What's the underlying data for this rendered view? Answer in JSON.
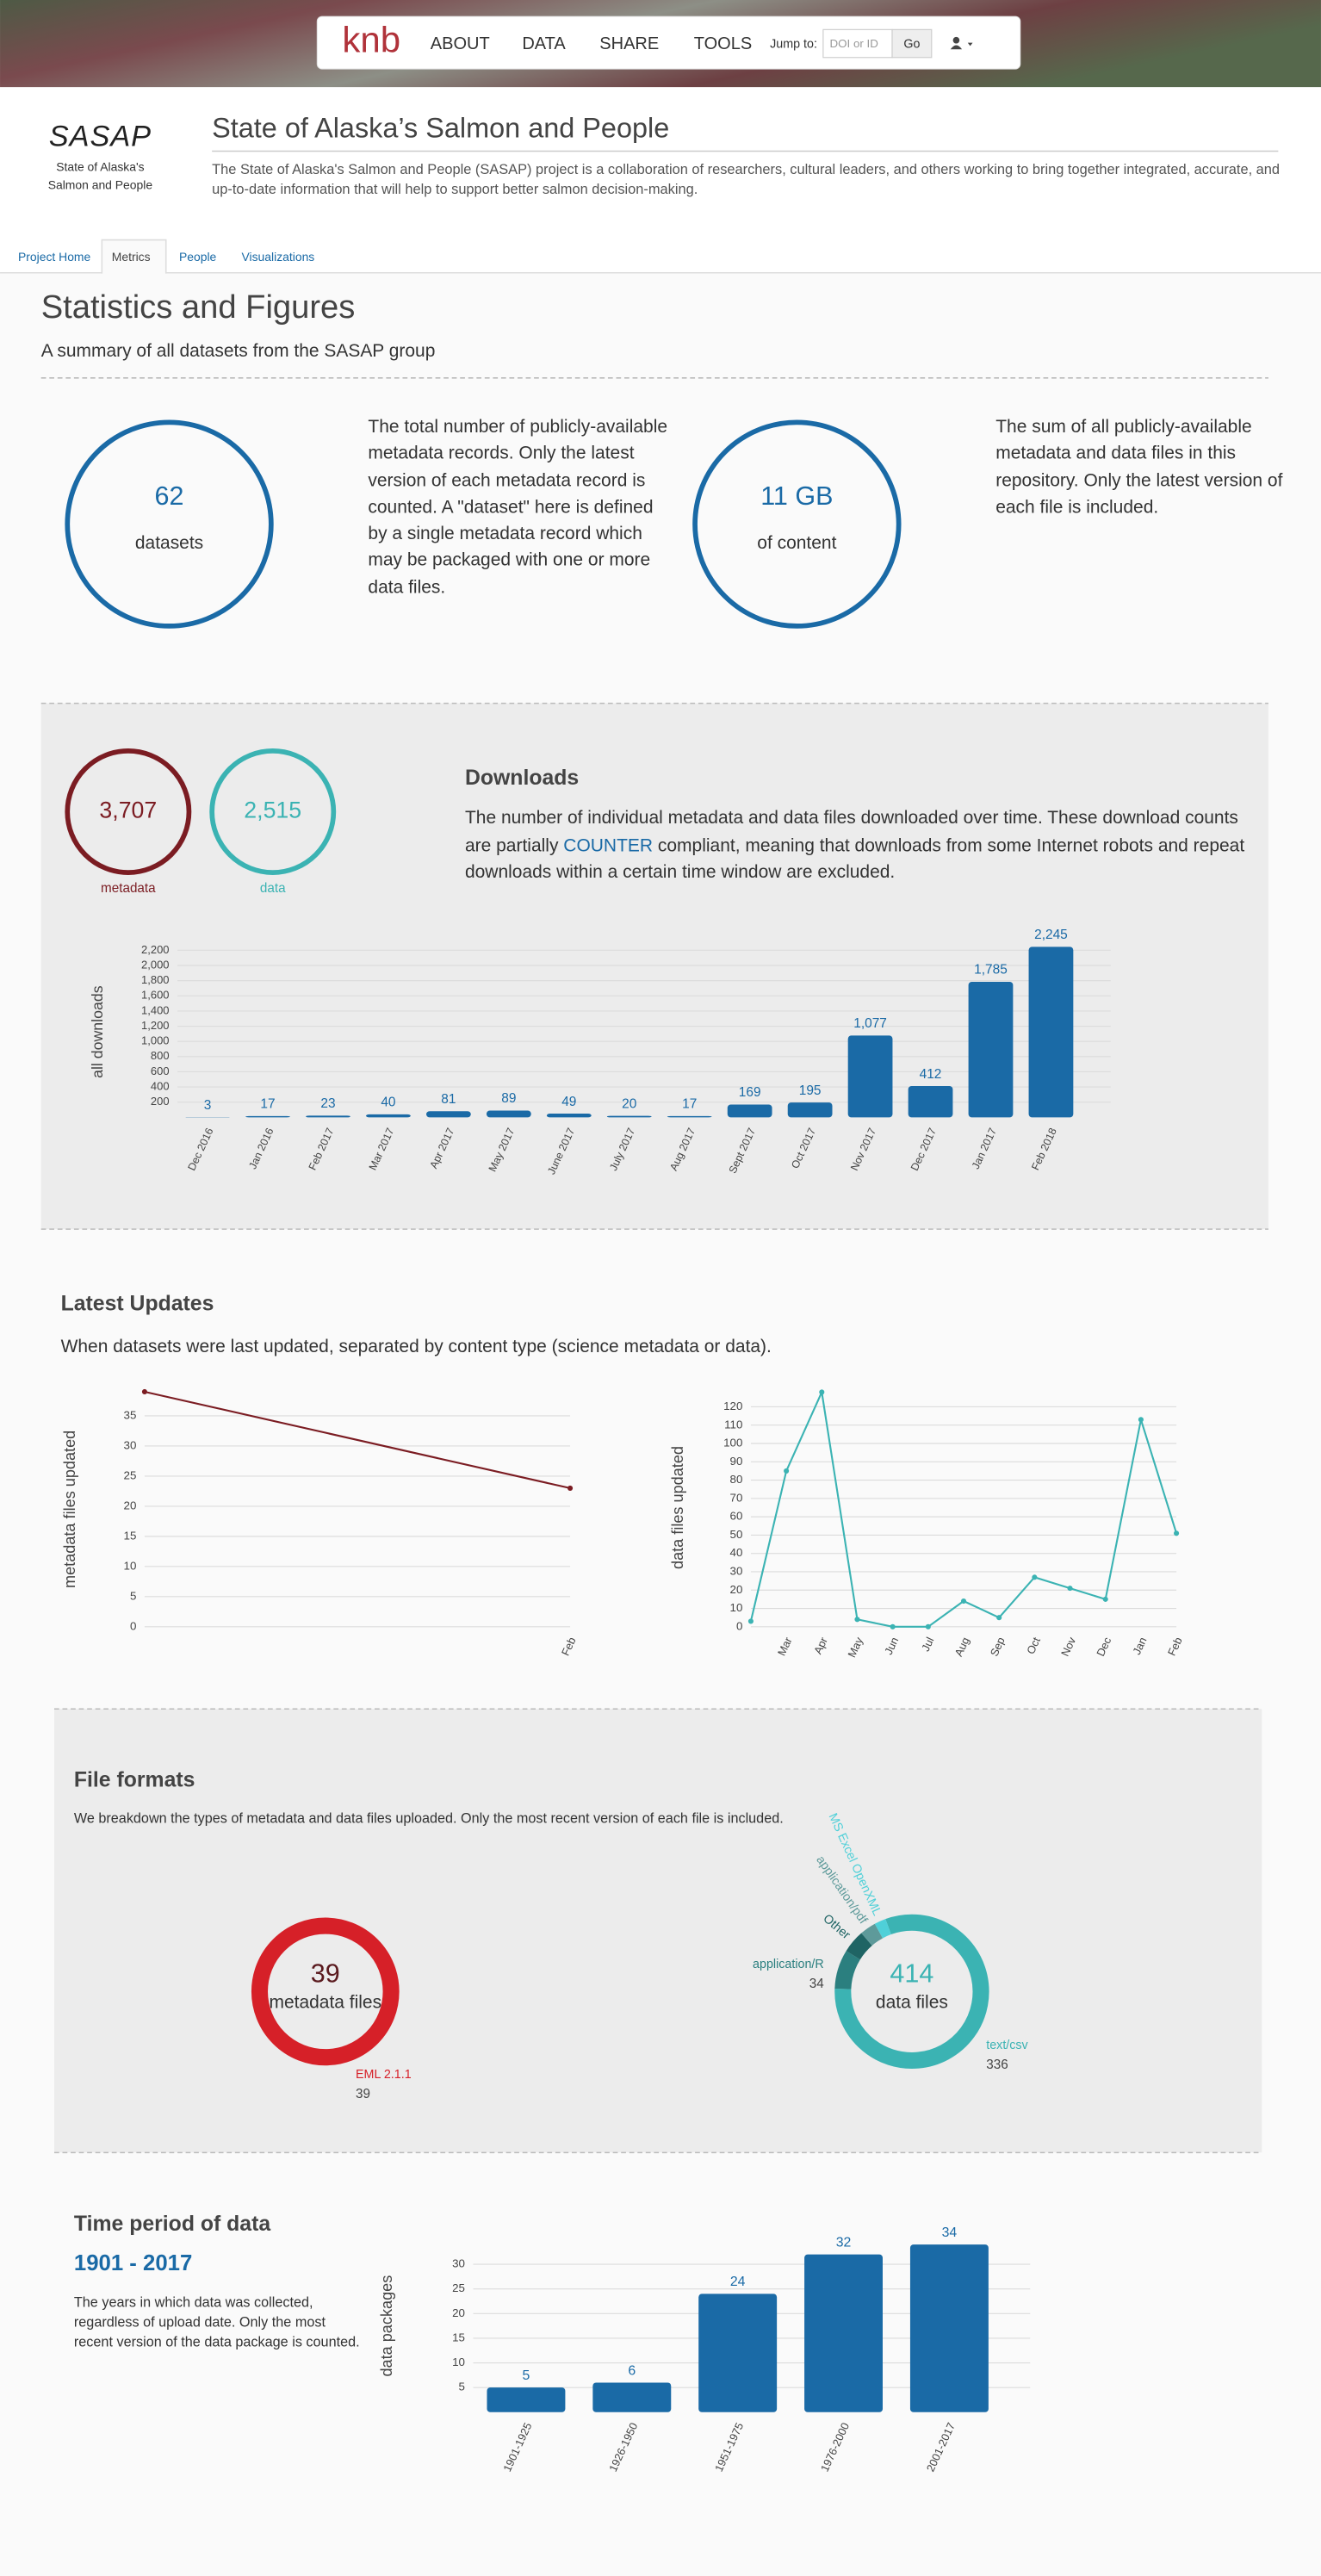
{
  "nav": {
    "logo": "knb",
    "items": [
      "ABOUT",
      "DATA",
      "SHARE",
      "TOOLS"
    ],
    "jump_label": "Jump to:",
    "jump_placeholder": "DOI or ID",
    "go": "Go"
  },
  "header": {
    "logo": "SASAP",
    "logo_lines": [
      "State of Alaska's",
      "Salmon and People"
    ],
    "title": "State of Alaska’s Salmon and People",
    "description": "The State of Alaska's Salmon and People (SASAP) project is a collaboration of researchers, cultural leaders, and others working to bring together integrated, accurate, and up-to-date information that will help to support better salmon decision-making."
  },
  "tabs": {
    "items": [
      "Project Home",
      "Metrics",
      "People",
      "Visualizations"
    ],
    "active": 1
  },
  "statistics": {
    "title": "Statistics and Figures",
    "subtitle": "A summary of all datasets from the SASAP group",
    "datasets": {
      "value": "62",
      "label": "datasets",
      "description": "The total number of publicly-available metadata records. Only the latest version of each metadata record is counted. A \"dataset\" here is defined by a single metadata record which may be packaged with one or more data files."
    },
    "content": {
      "value": "11 GB",
      "label": "of content",
      "description": "The sum of all publicly-available metadata and data files in this repository. Only the latest version of each file is included."
    }
  },
  "downloads": {
    "metadata": {
      "value": "3,707",
      "label": "metadata",
      "color": "#7b1c22"
    },
    "data": {
      "value": "2,515",
      "label": "data",
      "color": "#3bb3b3"
    },
    "title": "Downloads",
    "description_parts": [
      {
        "text": "The number of individual metadata and data files downloaded over time. These download counts are partially "
      },
      {
        "text": "COUNTER",
        "link": true
      },
      {
        "text": " compliant, meaning that downloads from some Internet robots and repeat downloads within a certain time window are excluded."
      }
    ],
    "chart": {
      "type": "bar",
      "ylabel": "all downloads",
      "color": "#1a6aa6",
      "grid": true,
      "categories": [
        "Dec 2016",
        "Jan 2016",
        "Feb 2017",
        "Mar 2017",
        "Apr 2017",
        "May 2017",
        "June 2017",
        "July 2017",
        "Aug 2017",
        "Sept 2017",
        "Oct 2017",
        "Nov 2017",
        "Dec 2017",
        "Jan 2017",
        "Feb 2018"
      ],
      "values": [
        3,
        17,
        23,
        40,
        81,
        89,
        49,
        20,
        17,
        169,
        195,
        1077,
        412,
        1785,
        2245
      ],
      "value_labels": [
        "3",
        "17",
        "23",
        "40",
        "81",
        "89",
        "49",
        "20",
        "17",
        "169",
        "195",
        "1,077",
        "412",
        "1,785",
        "2,245"
      ],
      "ylim": [
        0,
        2250
      ],
      "yticks": [
        200,
        400,
        600,
        800,
        {
          "value": 1000,
          "label": "1,000"
        },
        {
          "value": 1200,
          "label": "1,200"
        },
        {
          "value": 1400,
          "label": "1,400"
        },
        {
          "value": 1600,
          "label": "1,600"
        },
        {
          "value": 1800,
          "label": "1,800"
        },
        {
          "value": 2000,
          "label": "2,000"
        },
        {
          "value": 2200,
          "label": "2,200"
        }
      ]
    }
  },
  "updates": {
    "title": "Latest Updates",
    "description": "When datasets were last updated, separated by content type (science metadata or data).",
    "charts": [
      {
        "type": "line",
        "ylabel": "metadata files updated",
        "color": "#7b1c22",
        "grid": true,
        "categories": [
          null,
          "Feb"
        ],
        "values": [
          39,
          23
        ],
        "ylim": [
          0,
          39
        ],
        "yticks": [
          0,
          5,
          10,
          15,
          20,
          25,
          30,
          35
        ]
      },
      {
        "type": "line",
        "ylabel": "data files updated",
        "color": "#3bb3b3",
        "grid": true,
        "categories": [
          null,
          "Mar",
          "Apr",
          "May",
          "Jun",
          "Jul",
          "Aug",
          "Sep",
          "Oct",
          "Nov",
          "Dec",
          "Jan",
          "Feb"
        ],
        "values": [
          3,
          85,
          128,
          4,
          0,
          0,
          14,
          5,
          27,
          21,
          15,
          113,
          51
        ],
        "ylim": [
          0,
          130
        ],
        "yticks": [
          0,
          10,
          20,
          30,
          40,
          50,
          60,
          70,
          80,
          90,
          100,
          110,
          120
        ]
      }
    ]
  },
  "file_formats": {
    "title": "File formats",
    "description": "We breakdown the types of metadata and data files uploaded. Only the most recent version of each file is included.",
    "charts": [
      {
        "type": "donut",
        "total": "39",
        "label": "metadata files",
        "color": "#5a1a1e",
        "slices": [
          {
            "name": "EML 2.1.1",
            "value": 39,
            "color": "#d62028"
          }
        ]
      },
      {
        "type": "donut",
        "total": "414",
        "label": "data files",
        "color": "#3bb3b3",
        "slices": [
          {
            "name": "text/csv",
            "value": 336,
            "color": "#3bb3b3"
          },
          {
            "name": "application/R",
            "value": 34,
            "color": "#2b7f7f"
          },
          {
            "name": "Other",
            "value": 20,
            "color": "#1f6464"
          },
          {
            "name": "application/pdf",
            "value": 14,
            "color": "#5e9a9a"
          },
          {
            "name": "MS Excel OpenXML",
            "value": 10,
            "color": "#4fd0d8"
          }
        ]
      }
    ]
  },
  "time_period": {
    "title": "Time period of data",
    "range": "1901 - 2017",
    "description": "The years in which data was collected, regardless of upload date. Only the most recent version of the data package is counted.",
    "chart": {
      "type": "bar",
      "ylabel": "data packages",
      "color": "#1a6aa6",
      "grid": true,
      "categories": [
        "1901-1925",
        "1926-1950",
        "1951-1975",
        "1976-2000",
        "2001-2017"
      ],
      "values": [
        5,
        6,
        24,
        32,
        34
      ],
      "ylim": [
        0,
        35
      ],
      "yticks": [
        5,
        10,
        15,
        20,
        25,
        30
      ]
    }
  }
}
